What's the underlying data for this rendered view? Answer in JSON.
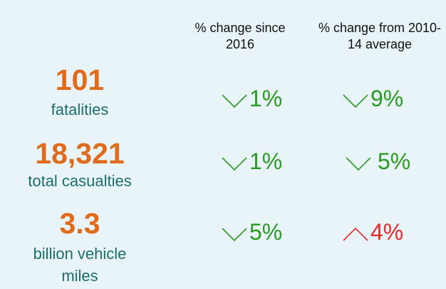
{
  "header": {
    "col1": "% change since 2016",
    "col2": "% change from 2010-14 average"
  },
  "rows": [
    {
      "value": "101",
      "label": "fatalities",
      "change_2016": "1%",
      "change_avg": "9%"
    },
    {
      "value": "18,321",
      "label": "total casualties",
      "change_2016": "1%",
      "change_avg": "5%"
    },
    {
      "value": "3.3",
      "label": "billion vehicle miles",
      "change_2016": "5%",
      "change_avg": "4%"
    }
  ]
}
